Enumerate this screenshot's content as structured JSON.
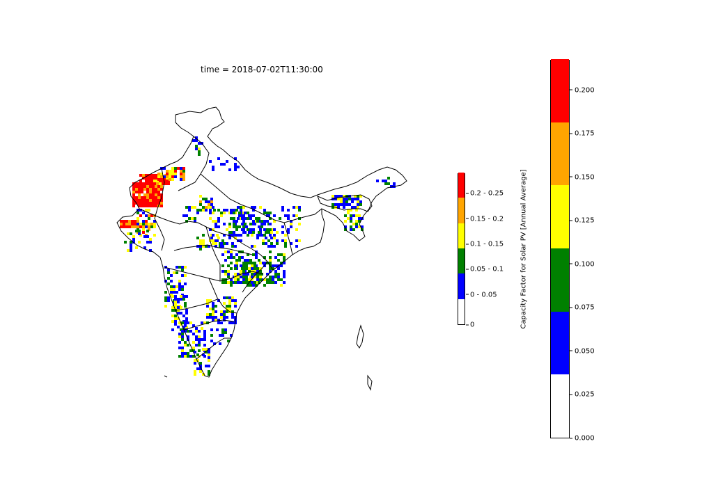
{
  "figure": {
    "title": "time = 2018-07-02T11:30:00"
  },
  "legend": {
    "entries": [
      {
        "label": "0",
        "color": "#ffffff"
      },
      {
        "label": "0 - 0.05",
        "color": "#0000ff"
      },
      {
        "label": "0.05 - 0.1",
        "color": "#008000"
      },
      {
        "label": "0.1 - 0.15",
        "color": "#ffff00"
      },
      {
        "label": "0.15 - 0.2",
        "color": "#ffa500"
      },
      {
        "label": "0.2 - 0.25",
        "color": "#ff0000"
      }
    ]
  },
  "colorbar": {
    "label": "Capacity Factor for Solar PV [Annual Average]",
    "range": [
      0.0,
      0.2175
    ],
    "colors": [
      "#ffffff",
      "#0000ff",
      "#008000",
      "#ffff00",
      "#ffa500",
      "#ff0000"
    ],
    "ticks": [
      "0.000",
      "0.025",
      "0.050",
      "0.075",
      "0.100",
      "0.125",
      "0.150",
      "0.175",
      "0.200"
    ]
  },
  "map": {
    "region": "India",
    "outline_color": "#000000",
    "cell_colors": {
      "blue": "#0000ff",
      "green": "#008000",
      "yellow": "#ffff00",
      "orange": "#ffa500",
      "red": "#ff0000"
    }
  }
}
